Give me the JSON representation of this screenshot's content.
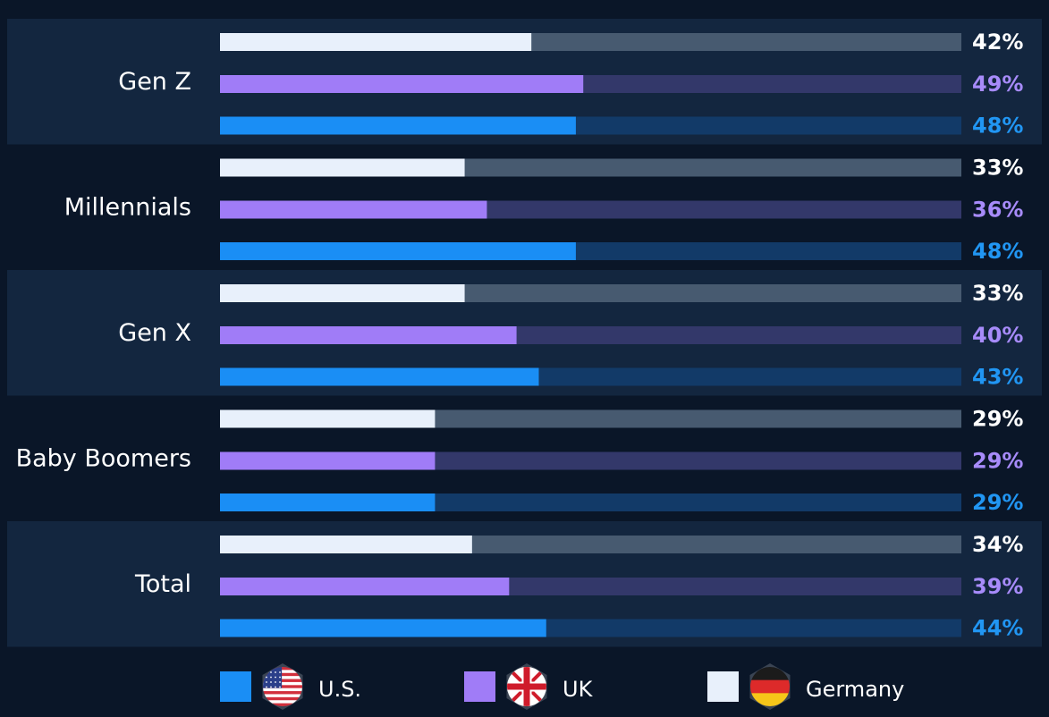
{
  "chart_data": {
    "type": "bar",
    "orientation": "horizontal",
    "categories": [
      "Gen Z",
      "Millennials",
      "Gen X",
      "Baby Boomers",
      "Total"
    ],
    "series": [
      {
        "name": "Germany",
        "color": "#e8f0fb",
        "track_color": "#475a70",
        "label_color": "#ffffff",
        "values": [
          42,
          33,
          33,
          29,
          34
        ],
        "value_labels": [
          "42%",
          "33%",
          "33%",
          "29%",
          "34%"
        ],
        "flag": "germany-flag-icon"
      },
      {
        "name": "UK",
        "color": "#a07cf7",
        "track_color": "#33386a",
        "label_color": "#a78bfa",
        "values": [
          49,
          36,
          40,
          29,
          39
        ],
        "value_labels": [
          "49%",
          "36%",
          "40%",
          "29%",
          "39%"
        ],
        "flag": "uk-flag-icon"
      },
      {
        "name": "U.S.",
        "color": "#1a8ef5",
        "track_color": "#123a68",
        "label_color": "#2196f3",
        "values": [
          48,
          48,
          43,
          29,
          44
        ],
        "value_labels": [
          "48%",
          "48%",
          "43%",
          "29%",
          "44%"
        ],
        "flag": "us-flag-icon"
      }
    ],
    "xlim": [
      0,
      100
    ],
    "legend_order": [
      "U.S.",
      "UK",
      "Germany"
    ],
    "legend_position": "bottom",
    "grid": false
  },
  "colors": {
    "background": "#0a1628",
    "band": "#13263f"
  }
}
